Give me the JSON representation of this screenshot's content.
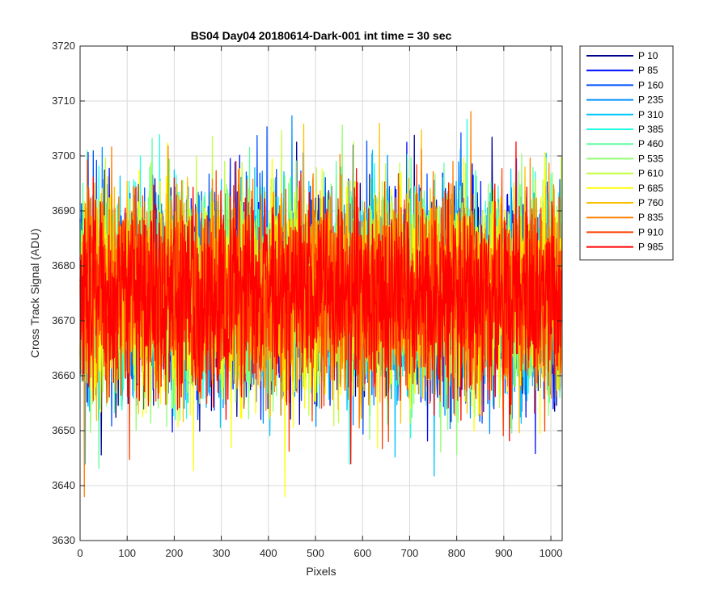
{
  "chart_data": {
    "type": "line",
    "title": "BS04 Day04 20180614-Dark-001 int time = 30 sec",
    "xlabel": "Pixels",
    "ylabel": "Cross Track Signal (ADU)",
    "xlim": [
      0,
      1024
    ],
    "ylim": [
      3630,
      3720
    ],
    "xticks": [
      0,
      100,
      200,
      300,
      400,
      500,
      600,
      700,
      800,
      900,
      1000
    ],
    "yticks": [
      3630,
      3640,
      3650,
      3660,
      3670,
      3680,
      3690,
      3700,
      3710,
      3720
    ],
    "grid": true,
    "legend_location": "outside-right",
    "n_points": 1024,
    "mean": 3675,
    "noise_std": 9,
    "series": [
      {
        "name": "P 10",
        "color": "#00008f"
      },
      {
        "name": "P 85",
        "color": "#0010ff"
      },
      {
        "name": "P 160",
        "color": "#0050ff"
      },
      {
        "name": "P 235",
        "color": "#0090ff"
      },
      {
        "name": "P 310",
        "color": "#00c4ff"
      },
      {
        "name": "P 385",
        "color": "#20ffdf"
      },
      {
        "name": "P 460",
        "color": "#60ffa0"
      },
      {
        "name": "P 535",
        "color": "#90ff70"
      },
      {
        "name": "P 610",
        "color": "#c0ff40"
      },
      {
        "name": "P 685",
        "color": "#ffff00"
      },
      {
        "name": "P 760",
        "color": "#ffc000"
      },
      {
        "name": "P 835",
        "color": "#ff8000"
      },
      {
        "name": "P 910",
        "color": "#ff4000"
      },
      {
        "name": "P 985",
        "color": "#ff0000"
      }
    ]
  }
}
